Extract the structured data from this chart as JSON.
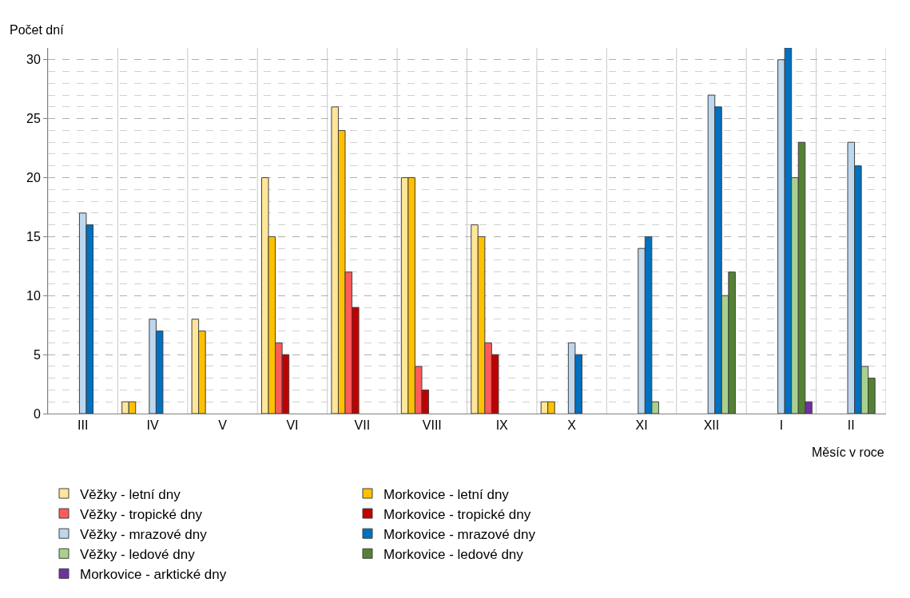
{
  "chart_data": {
    "type": "bar",
    "xlabel": "Měsíc v roce",
    "ylabel": "Počet dní",
    "categories": [
      "III",
      "IV",
      "V",
      "VI",
      "VII",
      "VIII",
      "IX",
      "X",
      "XI",
      "XII",
      "I",
      "II"
    ],
    "series": [
      {
        "name": "Věžky - letní dny",
        "color": "#ffe699",
        "values": [
          null,
          1,
          8,
          20,
          26,
          20,
          16,
          1,
          null,
          null,
          null,
          null
        ]
      },
      {
        "name": "Morkovice - letní dny",
        "color": "#ffc000",
        "values": [
          null,
          1,
          7,
          15,
          24,
          20,
          15,
          1,
          null,
          null,
          null,
          null
        ]
      },
      {
        "name": "Věžky - tropické dny",
        "color": "#ff5b5b",
        "values": [
          null,
          null,
          null,
          6,
          12,
          4,
          6,
          null,
          null,
          null,
          null,
          null
        ]
      },
      {
        "name": "Morkovice - tropické dny",
        "color": "#c00000",
        "values": [
          null,
          null,
          null,
          5,
          9,
          2,
          5,
          null,
          null,
          null,
          null,
          null
        ]
      },
      {
        "name": "Věžky - mrazové dny",
        "color": "#bdd7ee",
        "values": [
          17,
          8,
          null,
          null,
          null,
          null,
          null,
          6,
          14,
          27,
          30,
          23
        ]
      },
      {
        "name": "Morkovice - mrazové dny",
        "color": "#0070c0",
        "values": [
          16,
          7,
          null,
          null,
          null,
          null,
          null,
          5,
          15,
          26,
          31,
          21
        ]
      },
      {
        "name": "Věžky - ledové dny",
        "color": "#a9d18e",
        "values": [
          null,
          null,
          null,
          null,
          null,
          null,
          null,
          null,
          1,
          10,
          20,
          4
        ]
      },
      {
        "name": "Morkovice - ledové dny",
        "color": "#548235",
        "values": [
          null,
          null,
          null,
          null,
          null,
          null,
          null,
          null,
          null,
          12,
          23,
          3
        ]
      },
      {
        "name": "Morkovice - arktické dny",
        "color": "#7030a0",
        "values": [
          null,
          null,
          null,
          null,
          null,
          null,
          null,
          null,
          null,
          null,
          1,
          null
        ]
      }
    ],
    "ylim": [
      0,
      31
    ],
    "yticks": [
      0,
      5,
      10,
      15,
      20,
      25,
      30
    ],
    "grid": true,
    "legend": "bottom"
  }
}
